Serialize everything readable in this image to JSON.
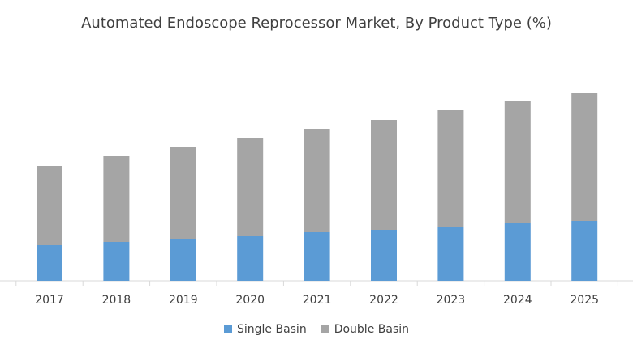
{
  "chart_data": {
    "type": "bar",
    "stacked": true,
    "title": "Automated Endoscope Reprocessor Market, By Product Type (%)",
    "xlabel": "",
    "ylabel": "",
    "grid": false,
    "legend_position": "bottom",
    "ylim": [
      0,
      240
    ],
    "categories": [
      "2017",
      "2018",
      "2019",
      "2020",
      "2021",
      "2022",
      "2023",
      "2024",
      "2025"
    ],
    "series": [
      {
        "name": "Single Basin",
        "color": "#5b9bd5",
        "values": [
          44,
          48,
          52,
          55,
          60,
          63,
          66,
          71,
          74
        ]
      },
      {
        "name": "Double Basin",
        "color": "#a5a5a5",
        "values": [
          98,
          106,
          113,
          121,
          127,
          135,
          145,
          151,
          157
        ]
      }
    ]
  }
}
